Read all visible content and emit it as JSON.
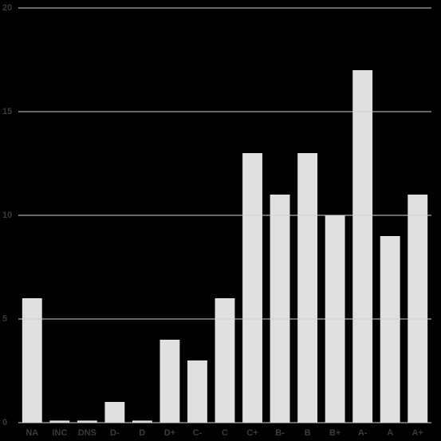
{
  "chart_data": {
    "type": "bar",
    "categories": [
      "NA",
      "INC",
      "DNS",
      "D-",
      "D",
      "D+",
      "C-",
      "C",
      "C+",
      "B-",
      "B",
      "B+",
      "A-",
      "A",
      "A+"
    ],
    "values": [
      6,
      0.1,
      0.1,
      1,
      0.1,
      4,
      3,
      6,
      13,
      11,
      13,
      10,
      17,
      9,
      11
    ],
    "color": "#e0e0e0",
    "ylim": [
      0,
      20
    ],
    "yticks": [
      0,
      5,
      10,
      15,
      20
    ],
    "grid": true
  }
}
